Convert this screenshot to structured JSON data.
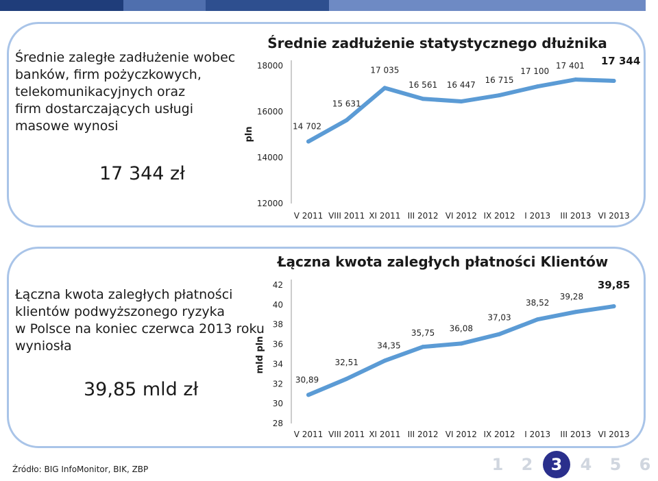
{
  "colors": {
    "line": "#5b9bd5",
    "panel_border": "#a9c4e8",
    "topbar": [
      "#1f3d7a",
      "#4f6fae",
      "#2e4f8f",
      "#6e8ac4"
    ],
    "pager_active": "#2a2f8c",
    "pager_inactive": "#d0d6df"
  },
  "panel1": {
    "text": [
      "Średnie zaległe zadłużenie wobec",
      "banków, firm pożyczkowych,",
      "telekomunikacyjnych oraz",
      "firm dostarczających usługi",
      "masowe wynosi"
    ],
    "value": "17 344 zł"
  },
  "panel2": {
    "text": [
      "Łączna kwota zaległych płatności",
      "klientów podwyższonego ryzyka",
      "w Polsce na koniec czerwca 2013 roku",
      "wyniosła"
    ],
    "value": "39,85 mld zł"
  },
  "source": "Źródło: BIG InfoMonitor, BIK, ZBP",
  "pager": {
    "pages": [
      "1",
      "2",
      "3",
      "4",
      "5",
      "6"
    ],
    "active_index": 2
  },
  "chart_data": [
    {
      "type": "line",
      "title": "Średnie zadłużenie statystycznego dłużnika",
      "ylabel": "pln",
      "xlabel": "",
      "ylim": [
        12000,
        18000
      ],
      "yticks": [
        "12000",
        "14000",
        "16000",
        "18000"
      ],
      "yticks_values": [
        12000,
        14000,
        16000,
        18000
      ],
      "x_tick_labels": [
        "V 2011",
        "VIII 2011",
        "XI 2011",
        "III 2012",
        "VI 2012",
        "IX 2012",
        "I 2013",
        "III 2013",
        "VI 2013"
      ],
      "values": [
        14702,
        15631,
        17035,
        16561,
        16447,
        16715,
        17100,
        17401,
        17344
      ],
      "data_labels": [
        "14 702",
        "15 631",
        "17 035",
        "16 561",
        "16 447",
        "16 715",
        "17 100",
        "17 401",
        "17 344"
      ],
      "grid": false,
      "legend": "none"
    },
    {
      "type": "line",
      "title": "Łączna kwota zaległych płatności Klientów",
      "ylabel": "mld pln",
      "xlabel": "",
      "ylim": [
        28,
        42
      ],
      "yticks": [
        "28",
        "30",
        "32",
        "34",
        "36",
        "38",
        "40",
        "42"
      ],
      "yticks_values": [
        28,
        30,
        32,
        34,
        36,
        38,
        40,
        42
      ],
      "x_tick_labels": [
        "V 2011",
        "VIII 2011",
        "XI 2011",
        "III 2012",
        "VI 2012",
        "IX 2012",
        "I 2013",
        "III 2013",
        "VI 2013"
      ],
      "x_tick_labels_count": 9,
      "values": [
        30.89,
        32.51,
        34.35,
        35.75,
        36.08,
        37.03,
        38.52,
        39.28,
        39.85
      ],
      "data_labels": [
        "30,89",
        "32,51",
        "34,35",
        "35,75",
        "36,08",
        "37,03",
        "38,52",
        "39,28",
        "39,85"
      ],
      "grid": false,
      "legend": "none"
    }
  ]
}
